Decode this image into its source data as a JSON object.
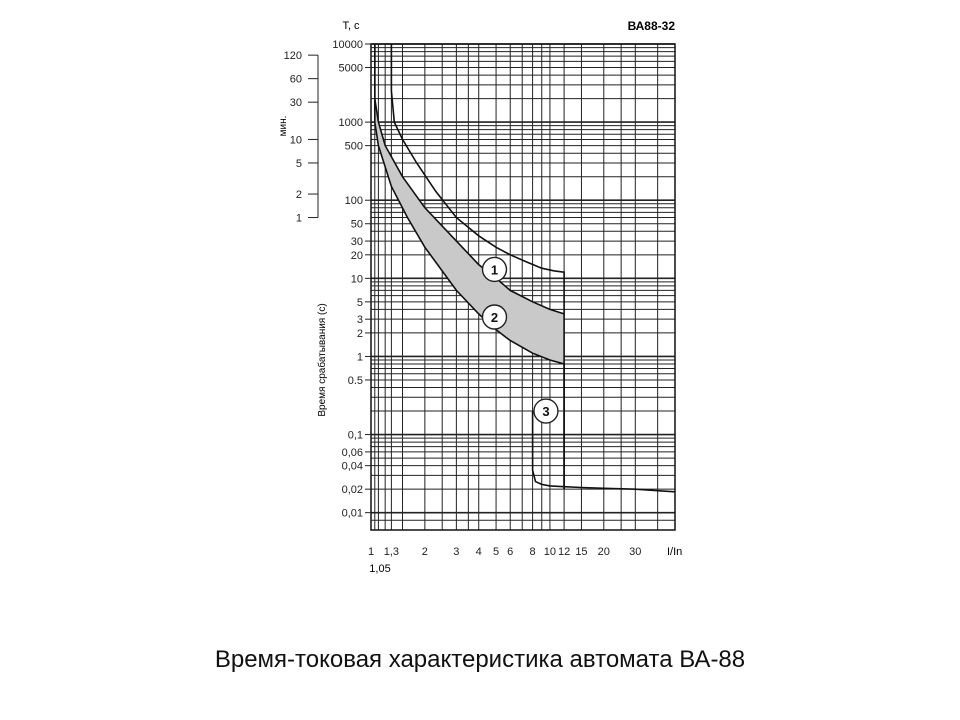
{
  "caption": "Время-токовая характеристика автомата ВА-88",
  "chart_data": {
    "type": "line",
    "title": "ВА88-32",
    "xlabel": "I/In",
    "ylabel": "Время срабатывания (с)",
    "y_unit_label": "T, c",
    "minutes_axis_label": "мин.",
    "xscale": "log",
    "yscale": "log",
    "xlim": [
      1,
      50
    ],
    "ylim": [
      0.006,
      10000
    ],
    "grid": true,
    "x_ticks": [
      "1",
      "1,3",
      "2",
      "3",
      "4",
      "5",
      "6",
      "8",
      "10",
      "12",
      "15",
      "20",
      "30"
    ],
    "x_tick_values": [
      1,
      1.3,
      2,
      3,
      4,
      5,
      6,
      8,
      10,
      12,
      15,
      20,
      30
    ],
    "x_extra_label": "1,05",
    "y_ticks": [
      "10000",
      "5000",
      "1000",
      "500",
      "100",
      "50",
      "30",
      "20",
      "10",
      "5",
      "3",
      "2",
      "1",
      "0.5",
      "0,1",
      "0,06",
      "0,04",
      "0,02",
      "0,01"
    ],
    "y_tick_values": [
      10000,
      5000,
      1000,
      500,
      100,
      50,
      30,
      20,
      10,
      5,
      3,
      2,
      1,
      0.5,
      0.1,
      0.06,
      0.04,
      0.02,
      0.01
    ],
    "minute_ticks": [
      "120",
      "60",
      "30",
      "10",
      "5",
      "2",
      "1"
    ],
    "minute_tick_values": [
      120,
      60,
      30,
      10,
      5,
      2,
      1
    ],
    "annotations": [
      "1",
      "2",
      "3"
    ],
    "series": [
      {
        "x": [
          1.3,
          1.3,
          1.35,
          1.5,
          1.8,
          2.3,
          3,
          4,
          5,
          6,
          7.5,
          9,
          10.5,
          12,
          12
        ],
        "y": [
          10000,
          2500,
          1000,
          600,
          300,
          130,
          60,
          35,
          25,
          20,
          16,
          13.5,
          12.5,
          12,
          0.02
        ]
      },
      {
        "x": [
          1.05,
          1.05,
          1.1,
          1.2,
          1.5,
          2,
          3,
          4,
          5,
          6,
          8,
          10,
          12
        ],
        "y": [
          10000,
          2000,
          1000,
          500,
          200,
          80,
          30,
          15,
          10,
          7,
          5,
          4,
          3.5
        ]
      },
      {
        "x": [
          1.05,
          1.05,
          1.1,
          1.3,
          1.6,
          2,
          3,
          4,
          5,
          6,
          8,
          10,
          12,
          12
        ],
        "y": [
          10000,
          1000,
          500,
          150,
          60,
          25,
          7,
          3.5,
          2.2,
          1.6,
          1.1,
          0.9,
          0.8,
          0.02
        ]
      },
      {
        "x": [
          8,
          8,
          8.3,
          9,
          10,
          12,
          15,
          20,
          30,
          50
        ],
        "y": [
          0.2,
          0.035,
          0.025,
          0.023,
          0.022,
          0.0215,
          0.021,
          0.0205,
          0.02,
          0.0185
        ]
      }
    ]
  }
}
